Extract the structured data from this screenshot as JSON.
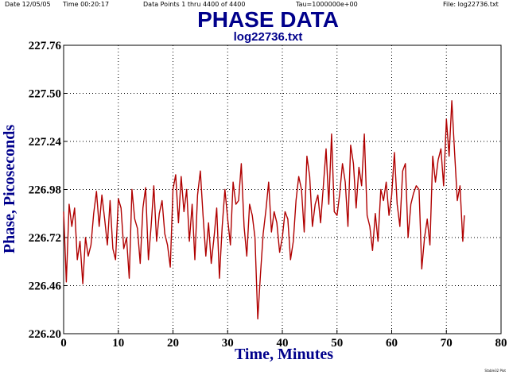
{
  "header": {
    "date": "Date  12/05/05",
    "time": "Time  00:20:17",
    "points": "Data Points 1 thru 4400 of 4400",
    "tau": "Tau=1000000e+00",
    "file": "File: log22736.txt"
  },
  "footer": {
    "credit": "Stable32 Plot"
  },
  "chart_data": {
    "type": "line",
    "title": "PHASE DATA",
    "subtitle": "log22736.txt",
    "xlabel": "Time, Minutes",
    "ylabel": "Phase, Picoseconds",
    "xlim": [
      0,
      80
    ],
    "ylim": [
      226.2,
      227.76
    ],
    "xticks": [
      "0",
      "10",
      "20",
      "30",
      "40",
      "50",
      "60",
      "70",
      "80"
    ],
    "yticks": [
      "226.20",
      "226.46",
      "226.72",
      "226.98",
      "227.24",
      "227.50",
      "227.76"
    ],
    "grid": true,
    "line_color": "#b00000",
    "series": [
      {
        "x": [
          0.0,
          0.5,
          1.0,
          1.5,
          2.0,
          2.5,
          3.0,
          3.5,
          4.0,
          4.5,
          5.0,
          5.5,
          6.0,
          6.5,
          7.0,
          7.5,
          8.0,
          8.5,
          9.0,
          9.5,
          10.0,
          10.5,
          11.0,
          11.5,
          12.0,
          12.5,
          13.0,
          13.5,
          14.0,
          14.5,
          15.0,
          15.5,
          16.0,
          16.5,
          17.0,
          17.5,
          18.0,
          18.5,
          19.0,
          19.5,
          20.0,
          20.5,
          21.0,
          21.5,
          22.0,
          22.5,
          23.0,
          23.5,
          24.0,
          24.5,
          25.0,
          25.5,
          26.0,
          26.5,
          27.0,
          27.5,
          28.0,
          28.5,
          29.0,
          29.5,
          30.0,
          30.5,
          31.0,
          31.5,
          32.0,
          32.5,
          33.0,
          33.5,
          34.0,
          34.5,
          35.0,
          35.5,
          36.0,
          36.5,
          37.0,
          37.5,
          38.0,
          38.5,
          39.0,
          39.5,
          40.0,
          40.5,
          41.0,
          41.5,
          42.0,
          42.5,
          43.0,
          43.5,
          44.0,
          44.5,
          45.0,
          45.5,
          46.0,
          46.5,
          47.0,
          47.5,
          48.0,
          48.5,
          49.0,
          49.5,
          50.0,
          50.5,
          51.0,
          51.5,
          52.0,
          52.5,
          53.0,
          53.5,
          54.0,
          54.5,
          55.0,
          55.5,
          56.0,
          56.5,
          57.0,
          57.5,
          58.0,
          58.5,
          59.0,
          59.5,
          60.0,
          60.5,
          61.0,
          61.5,
          62.0,
          62.5,
          63.0,
          63.5,
          64.0,
          64.5,
          65.0,
          65.5,
          66.0,
          66.5,
          67.0,
          67.5,
          68.0,
          68.5,
          69.0,
          69.5,
          70.0,
          70.5,
          71.0,
          71.5,
          72.0,
          72.5,
          73.0,
          73.3
        ],
        "y": [
          226.86,
          226.48,
          226.9,
          226.78,
          226.88,
          226.6,
          226.7,
          226.47,
          226.72,
          226.62,
          226.68,
          226.85,
          226.97,
          226.78,
          226.95,
          226.82,
          226.68,
          226.92,
          226.66,
          226.6,
          226.93,
          226.88,
          226.66,
          226.72,
          226.5,
          226.98,
          226.82,
          226.77,
          226.58,
          226.88,
          226.99,
          226.6,
          226.78,
          227.0,
          226.7,
          226.85,
          226.92,
          226.74,
          226.68,
          226.56,
          226.98,
          227.06,
          226.8,
          227.05,
          226.86,
          226.98,
          226.7,
          226.9,
          226.6,
          226.95,
          227.08,
          226.84,
          226.62,
          226.8,
          226.58,
          226.72,
          226.88,
          226.5,
          226.78,
          226.98,
          226.82,
          226.68,
          227.02,
          226.9,
          226.92,
          227.12,
          226.78,
          226.62,
          226.9,
          226.84,
          226.72,
          226.28,
          226.52,
          226.74,
          226.87,
          227.02,
          226.75,
          226.86,
          226.8,
          226.64,
          226.72,
          226.86,
          226.82,
          226.6,
          226.7,
          226.92,
          227.05,
          226.98,
          226.75,
          227.16,
          227.05,
          226.78,
          226.9,
          226.95,
          226.8,
          227.0,
          227.2,
          226.9,
          227.28,
          226.86,
          226.84,
          226.96,
          227.12,
          227.02,
          226.78,
          227.22,
          227.12,
          226.88,
          227.1,
          227.0,
          227.28,
          226.84,
          226.78,
          226.65,
          226.85,
          226.7,
          226.98,
          226.92,
          227.02,
          226.84,
          226.95,
          227.18,
          226.9,
          226.78,
          227.08,
          227.12,
          226.72,
          226.9,
          226.96,
          227.0,
          226.98,
          226.55,
          226.72,
          226.82,
          226.68,
          227.16,
          227.02,
          227.14,
          227.2,
          227.0,
          227.36,
          227.16,
          227.46,
          227.18,
          226.92,
          227.0,
          226.7,
          226.84
        ]
      }
    ]
  }
}
